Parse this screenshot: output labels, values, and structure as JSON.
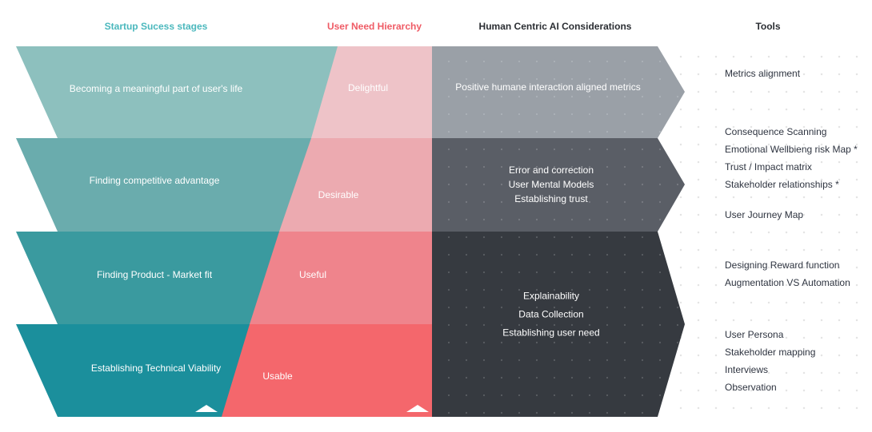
{
  "headers": {
    "stages": "Startup Sucess stages",
    "hierarchy": "User Need Hierarchy",
    "considerations": "Human Centric AI Considerations",
    "tools": "Tools"
  },
  "colors": {
    "stages_header": "#4bb8bd",
    "hierarchy_header": "#ef5b65",
    "dark_header": "#2b2e33",
    "stage_1": "#8dc0be",
    "stage_2": "#6aacad",
    "stage_3": "#3a9a9f",
    "stage_4": "#1b8f9c",
    "need_1": "#eec3c8",
    "need_2": "#ecaab0",
    "need_3": "#ef848c",
    "need_4": "#f4676c",
    "ai_1": "#9aa0a7",
    "ai_2": "#5a5e66",
    "ai_3": "#363a40",
    "tools_text": "#2e3440"
  },
  "stages": [
    "Becoming a meaningful part of user's life",
    "Finding competitive advantage",
    "Finding Product - Market fit",
    "Establishing Technical Viability"
  ],
  "needs": [
    "Delightful",
    "Desirable",
    "Useful",
    "Usable"
  ],
  "considerations": {
    "top": [
      "Positive humane interaction aligned metrics"
    ],
    "middle": [
      "Error and correction",
      "User Mental Models",
      "Establishing trust"
    ],
    "bottom": [
      "Explainability",
      "Data Collection",
      "Establishing user need"
    ]
  },
  "tools": [
    [
      "Metrics alignment"
    ],
    [
      "Consequence Scanning",
      "Emotional Wellbieng risk Map *",
      "Trust / Impact matrix",
      "Stakeholder relationships *"
    ],
    [
      "User Journey Map"
    ],
    [
      "Designing Reward function",
      "Augmentation VS Automation"
    ],
    [
      "User Persona",
      "Stakeholder mapping",
      "Interviews",
      "Observation"
    ]
  ],
  "icons": [
    "up-triangle-icon",
    "up-triangle-icon"
  ]
}
